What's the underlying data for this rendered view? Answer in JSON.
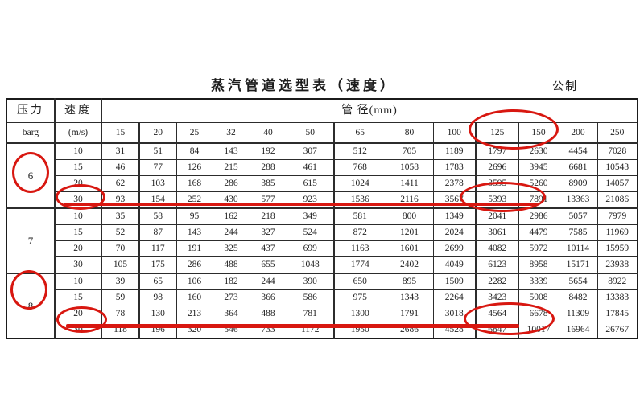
{
  "page": {
    "title": "蒸汽管道选型表（速度）",
    "unit_label": "公制"
  },
  "table": {
    "header": {
      "pressure_label": "压力",
      "pressure_unit": "barg",
      "speed_label": "速度",
      "speed_unit": "(m/s)",
      "diameter_label": "管 径(mm)",
      "diameters": [
        "15",
        "20",
        "25",
        "32",
        "40",
        "50",
        "65",
        "80",
        "100",
        "125",
        "150",
        "200",
        "250"
      ]
    },
    "groups": [
      {
        "pressure": "6",
        "rows": [
          {
            "speed": "10",
            "values": [
              31,
              51,
              84,
              143,
              192,
              307,
              512,
              705,
              1189,
              1797,
              2630,
              4454,
              7028
            ]
          },
          {
            "speed": "15",
            "values": [
              46,
              77,
              126,
              215,
              288,
              461,
              768,
              1058,
              1783,
              2696,
              3945,
              6681,
              10543
            ]
          },
          {
            "speed": "20",
            "values": [
              62,
              103,
              168,
              286,
              385,
              615,
              1024,
              1411,
              2378,
              3595,
              5260,
              8909,
              14057
            ]
          },
          {
            "speed": "30",
            "values": [
              93,
              154,
              252,
              430,
              577,
              923,
              1536,
              2116,
              3567,
              5393,
              7891,
              13363,
              21086
            ]
          }
        ]
      },
      {
        "pressure": "7",
        "rows": [
          {
            "speed": "10",
            "values": [
              35,
              58,
              95,
              162,
              218,
              349,
              581,
              800,
              1349,
              2041,
              2986,
              5057,
              7979
            ]
          },
          {
            "speed": "15",
            "values": [
              52,
              87,
              143,
              244,
              327,
              524,
              872,
              1201,
              2024,
              3061,
              4479,
              7585,
              11969
            ]
          },
          {
            "speed": "20",
            "values": [
              70,
              117,
              191,
              325,
              437,
              699,
              1163,
              1601,
              2699,
              4082,
              5972,
              10114,
              15959
            ]
          },
          {
            "speed": "30",
            "values": [
              105,
              175,
              286,
              488,
              655,
              1048,
              1774,
              2402,
              4049,
              6123,
              8958,
              15171,
              23938
            ]
          }
        ]
      },
      {
        "pressure": "8",
        "rows": [
          {
            "speed": "10",
            "values": [
              39,
              65,
              106,
              182,
              244,
              390,
              650,
              895,
              1509,
              2282,
              3339,
              5654,
              8922
            ]
          },
          {
            "speed": "15",
            "values": [
              59,
              98,
              160,
              273,
              366,
              586,
              975,
              1343,
              2264,
              3423,
              5008,
              8482,
              13383
            ]
          },
          {
            "speed": "20",
            "values": [
              78,
              130,
              213,
              364,
              488,
              781,
              1300,
              1791,
              3018,
              4564,
              6678,
              11309,
              17845
            ]
          },
          {
            "speed": "30",
            "values": [
              118,
              196,
              320,
              546,
              733,
              1172,
              1950,
              2686,
              4528,
              6847,
              10017,
              16964,
              26767
            ]
          }
        ]
      }
    ]
  },
  "annotations": {
    "color": "#d81710",
    "circled_items": [
      "pressure 6",
      "pressure 8",
      "speed 30 (pressure 6)",
      "speed 30 (pressure 8)",
      "diameter headers 125 and 150",
      "values 5393 and 7891",
      "values 6847 and 10017"
    ],
    "underlined_rows": [
      "pressure 6 / speed 30 row",
      "pressure 8 / speed 30 row"
    ]
  }
}
